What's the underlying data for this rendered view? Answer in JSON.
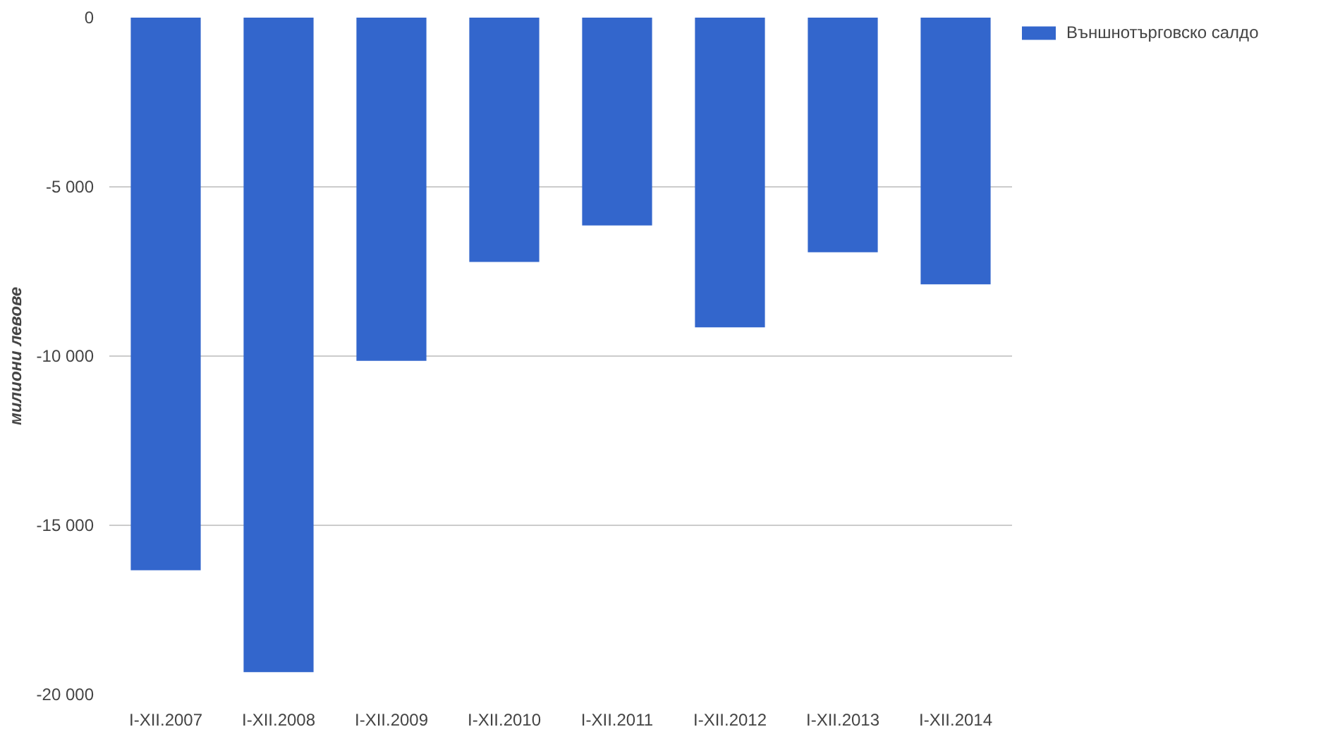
{
  "chart_data": {
    "type": "bar",
    "ylabel": "милиони левове",
    "categories": [
      "I-XII.2007",
      "I-XII.2008",
      "I-XII.2009",
      "I-XII.2010",
      "I-XII.2011",
      "I-XII.2012",
      "I-XII.2013",
      "I-XII.2014"
    ],
    "series": [
      {
        "name": "Външнотърговско салдо",
        "color": "#3366cc",
        "values": [
          -16330,
          -19340,
          -10140,
          -7220,
          -6140,
          -9150,
          -6930,
          -7880
        ]
      }
    ],
    "ylim": [
      -20000,
      0
    ],
    "yticks": [
      {
        "value": -20000,
        "label": "-20 000"
      },
      {
        "value": -15000,
        "label": "-15 000"
      },
      {
        "value": -10000,
        "label": "-10 000"
      },
      {
        "value": -5000,
        "label": "-5 000"
      },
      0
    ],
    "grid": "y",
    "legend": "top right"
  }
}
